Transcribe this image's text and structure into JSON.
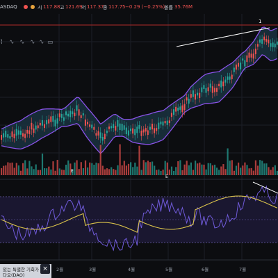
{
  "header": {
    "symbol": "ASDAQ",
    "open_label": "시",
    "open_value": "117.88",
    "high_label": "고",
    "high_value": "121.69",
    "low_label": "저",
    "low_value": "117.37",
    "close_label": "종",
    "close_value": "117.75",
    "change": "−0.29 (−0.25%)",
    "volume_label": "볼륨",
    "volume_value": "35.76M",
    "up_color": "#26a69a",
    "down_color": "#ef5350"
  },
  "annotation": {
    "marker": "1"
  },
  "toolbar_icons": [
    "pattern-draw-icon",
    "wave-draw-icon",
    "wave-draw-icon",
    "wave-draw-icon",
    "wave-draw-icon",
    "rectangle-tool-icon"
  ],
  "x_axis": {
    "months": [
      "2월",
      "3월",
      "4월",
      "5월",
      "6월",
      "7월"
    ]
  },
  "banner": {
    "line1": "있는 특별한 기회가",
    "line2": "다오(DAO)",
    "close_icon": "close-icon"
  },
  "colors": {
    "band_fill": "#1a3340",
    "band_line": "#8a52e8",
    "oscillator_fast": "#6f5ad8",
    "oscillator_slow": "#d9c24a",
    "trend_line": "#ffffff",
    "level_line": "#b02a2a"
  }
}
